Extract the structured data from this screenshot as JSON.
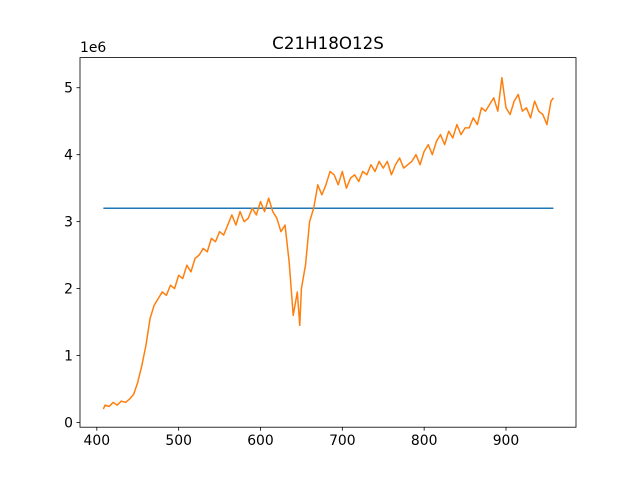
{
  "chart_data": {
    "type": "line",
    "title": "C21H18O12S",
    "y_offset_label": "1e6",
    "xlim": [
      379.45,
      985.55
    ],
    "ylim": [
      -70000,
      5450000
    ],
    "xticks": [
      400,
      500,
      600,
      700,
      800,
      900
    ],
    "yticks": [
      {
        "value": 0,
        "label": "0"
      },
      {
        "value": 1000000,
        "label": "1"
      },
      {
        "value": 2000000,
        "label": "2"
      },
      {
        "value": 3000000,
        "label": "3"
      },
      {
        "value": 4000000,
        "label": "4"
      },
      {
        "value": 5000000,
        "label": "5"
      }
    ],
    "series": [
      {
        "color": "#1f77b4",
        "x": [
          408,
          958
        ],
        "values": [
          3200000,
          3200000
        ]
      },
      {
        "color": "#ff7f0e",
        "x": [
          408,
          410,
          415,
          420,
          425,
          430,
          435,
          440,
          445,
          450,
          455,
          460,
          465,
          470,
          475,
          480,
          485,
          490,
          495,
          500,
          505,
          510,
          515,
          520,
          525,
          530,
          535,
          540,
          545,
          550,
          555,
          560,
          565,
          570,
          575,
          580,
          585,
          590,
          595,
          600,
          605,
          610,
          615,
          620,
          625,
          630,
          635,
          640,
          645,
          648,
          650,
          655,
          660,
          665,
          670,
          675,
          680,
          685,
          690,
          695,
          700,
          705,
          710,
          715,
          720,
          725,
          730,
          735,
          740,
          745,
          750,
          755,
          760,
          765,
          770,
          775,
          780,
          785,
          790,
          795,
          800,
          805,
          810,
          815,
          820,
          825,
          830,
          835,
          840,
          845,
          850,
          855,
          860,
          865,
          870,
          875,
          880,
          885,
          890,
          895,
          900,
          905,
          910,
          915,
          920,
          925,
          930,
          935,
          940,
          945,
          950,
          955,
          958
        ],
        "values": [
          200000,
          260000,
          240000,
          300000,
          260000,
          320000,
          300000,
          350000,
          420000,
          600000,
          850000,
          1150000,
          1550000,
          1750000,
          1850000,
          1950000,
          1900000,
          2050000,
          2000000,
          2200000,
          2150000,
          2350000,
          2250000,
          2450000,
          2500000,
          2600000,
          2550000,
          2750000,
          2700000,
          2850000,
          2800000,
          2950000,
          3100000,
          2950000,
          3150000,
          3000000,
          3050000,
          3200000,
          3100000,
          3300000,
          3150000,
          3350000,
          3150000,
          3050000,
          2850000,
          2950000,
          2400000,
          1600000,
          1950000,
          1450000,
          2000000,
          2350000,
          3000000,
          3200000,
          3550000,
          3400000,
          3550000,
          3750000,
          3700000,
          3550000,
          3750000,
          3500000,
          3650000,
          3700000,
          3600000,
          3750000,
          3700000,
          3850000,
          3750000,
          3900000,
          3800000,
          3900000,
          3700000,
          3850000,
          3950000,
          3800000,
          3850000,
          3900000,
          4000000,
          3850000,
          4050000,
          4150000,
          4000000,
          4200000,
          4300000,
          4150000,
          4350000,
          4250000,
          4450000,
          4300000,
          4400000,
          4400000,
          4550000,
          4450000,
          4700000,
          4650000,
          4750000,
          4850000,
          4650000,
          5150000,
          4700000,
          4600000,
          4800000,
          4900000,
          4650000,
          4700000,
          4550000,
          4800000,
          4650000,
          4600000,
          4450000,
          4800000,
          4850000
        ]
      }
    ]
  }
}
